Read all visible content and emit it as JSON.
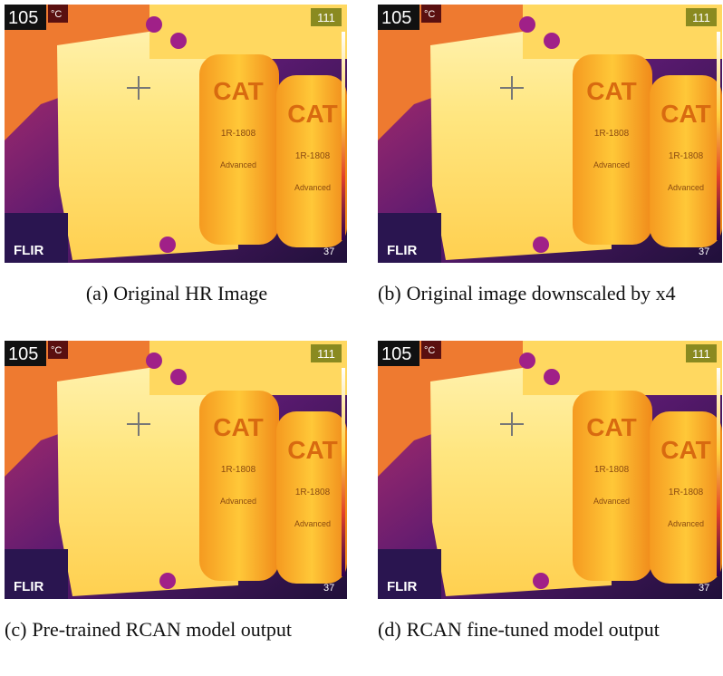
{
  "overlay": {
    "max_temp": "105",
    "unit": "°C",
    "scale_top": "111",
    "scale_bottom": "37",
    "brand": "FLIR",
    "filter_logo": "CAT",
    "filter_code": "1R-1808",
    "filter_label": "Advanced"
  },
  "panels": [
    {
      "label": "(a)",
      "caption": "Original HR Image"
    },
    {
      "label": "(b)",
      "caption": "Original image downscaled by x4"
    },
    {
      "label": "(c)",
      "caption": "Pre-trained RCAN model output"
    },
    {
      "label": "(d)",
      "caption": "RCAN fine-tuned model output"
    }
  ]
}
